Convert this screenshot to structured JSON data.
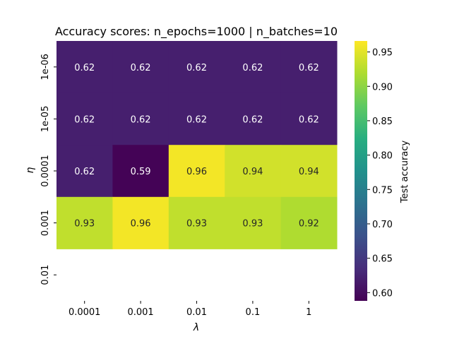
{
  "chart_data": {
    "type": "heatmap",
    "title": "Accuracy scores: n_epochs=1000 | n_batches=10",
    "xlabel": "λ",
    "ylabel": "η",
    "x_categories": [
      "0.0001",
      "0.001",
      "0.01",
      "0.1",
      "1"
    ],
    "y_categories": [
      "1e-06",
      "1e-05",
      "0.0001",
      "0.001",
      "0.01"
    ],
    "values": [
      [
        0.62,
        0.62,
        0.62,
        0.62,
        0.62
      ],
      [
        0.62,
        0.62,
        0.62,
        0.62,
        0.62
      ],
      [
        0.62,
        0.59,
        0.96,
        0.94,
        0.94
      ],
      [
        0.93,
        0.96,
        0.93,
        0.93,
        0.92
      ],
      [
        null,
        null,
        null,
        null,
        null
      ]
    ],
    "colormap": "viridis",
    "vmin": 0.588,
    "vmax": 0.966,
    "colorbar": {
      "label": "Test accuracy",
      "ticks": [
        "0.60",
        "0.65",
        "0.70",
        "0.75",
        "0.80",
        "0.85",
        "0.90",
        "0.95"
      ],
      "tick_values": [
        0.6,
        0.65,
        0.7,
        0.75,
        0.8,
        0.85,
        0.9,
        0.95
      ]
    }
  }
}
